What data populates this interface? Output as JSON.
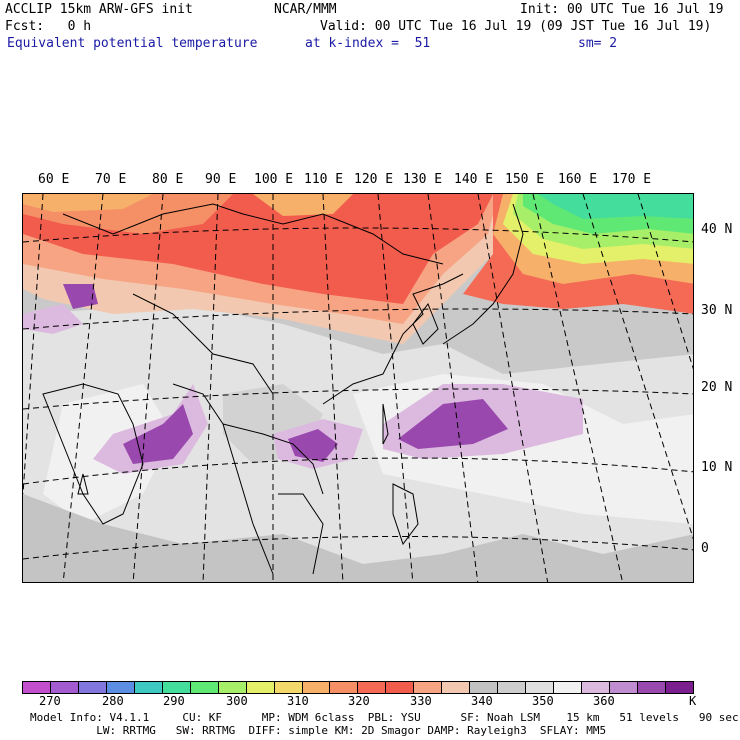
{
  "header": {
    "model_title": "ACCLIP 15km ARW-GFS init",
    "center": "NCAR/MMM",
    "init": "Init: 00 UTC Tue 16 Jul 19",
    "fcst": "Fcst:   0 h",
    "valid": "Valid: 00 UTC Tue 16 Jul 19 (09 JST Tue 16 Jul 19)",
    "field": "Equivalent potential temperature",
    "level": "at k-index =  51",
    "smoothing": "sm= 2"
  },
  "map": {
    "lon_labels": [
      "60 E",
      "70 E",
      "80 E",
      "90 E",
      "100 E",
      "110 E",
      "120 E",
      "130 E",
      "140 E",
      "150 E",
      "160 E",
      "170 E"
    ],
    "lat_labels": [
      "40 N",
      "30 N",
      "20 N",
      "10 N",
      "0"
    ]
  },
  "colorbar": {
    "colors": [
      "#c34fcc",
      "#a35ccf",
      "#8277dd",
      "#5b8ee3",
      "#3ec9c3",
      "#45dd9b",
      "#5fe874",
      "#a7ef69",
      "#e5f06a",
      "#f3d86a",
      "#f6b06a",
      "#f58f66",
      "#f46a55",
      "#f25c4d",
      "#f6a484",
      "#f2c8b0",
      "#c2c2c2",
      "#cdcdcd",
      "#e0e0e0",
      "#f1f1f1",
      "#dcbadf",
      "#c08ed0",
      "#9948ad",
      "#7b1f8e"
    ],
    "tick_labels": [
      "270",
      "280",
      "290",
      "300",
      "310",
      "320",
      "330",
      "340",
      "350",
      "360"
    ],
    "unit": "K"
  },
  "footer": {
    "line1": "Model Info: V4.1.1     CU: KF      MP: WDM 6class  PBL: YSU      SF: Noah LSM    15 km   51 levels   90 sec",
    "line2": "          LW: RRTMG   SW: RRTMG  DIFF: simple KM: 2D Smagor DAMP: Rayleigh3  SFLAY: MM5"
  }
}
